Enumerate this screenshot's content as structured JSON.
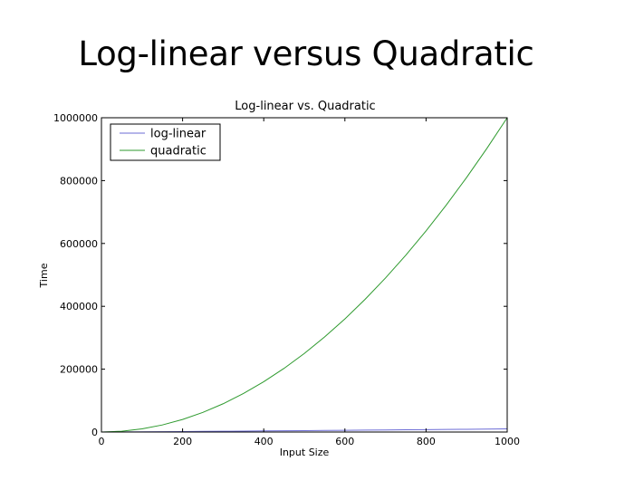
{
  "slide": {
    "title": "Log-linear versus Quadratic"
  },
  "chart_data": {
    "type": "line",
    "title": "Log-linear vs. Quadratic",
    "xlabel": "Input Size",
    "ylabel": "Time",
    "xlim": [
      0,
      1000
    ],
    "ylim": [
      0,
      1000000
    ],
    "xticks": [
      0,
      200,
      400,
      600,
      800,
      1000
    ],
    "yticks": [
      0,
      200000,
      400000,
      600000,
      800000,
      1000000
    ],
    "grid": false,
    "legend_position": "top-left",
    "series": [
      {
        "name": "log-linear",
        "color": "#6b6bd6",
        "x": [
          0,
          50,
          100,
          150,
          200,
          250,
          300,
          350,
          400,
          450,
          500,
          550,
          600,
          650,
          700,
          750,
          800,
          850,
          900,
          950,
          1000
        ],
        "y": [
          0,
          282,
          664,
          1084,
          1529,
          1993,
          2469,
          2958,
          3458,
          3966,
          4483,
          5007,
          5537,
          6073,
          6615,
          7161,
          7715,
          8270,
          8832,
          9398,
          9966
        ]
      },
      {
        "name": "quadratic",
        "color": "#2e9a2e",
        "x": [
          0,
          50,
          100,
          150,
          200,
          250,
          300,
          350,
          400,
          450,
          500,
          550,
          600,
          650,
          700,
          750,
          800,
          850,
          900,
          950,
          1000
        ],
        "y": [
          0,
          2500,
          10000,
          22500,
          40000,
          62500,
          90000,
          122500,
          160000,
          202500,
          250000,
          302500,
          360000,
          422500,
          490000,
          562500,
          640000,
          722500,
          810000,
          902500,
          1000000
        ]
      }
    ]
  }
}
